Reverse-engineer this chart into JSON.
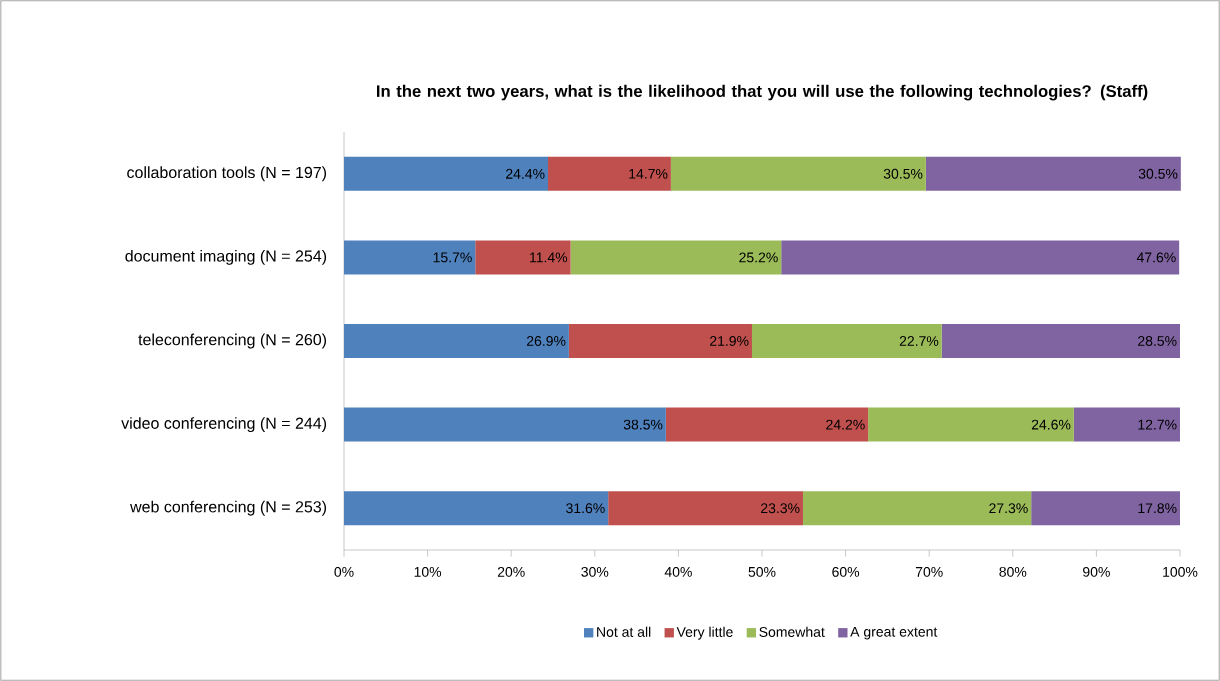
{
  "chart_data": {
    "type": "bar",
    "orientation": "horizontal",
    "stacked": true,
    "title": "In the next two years, what is the likelihood that you will use the following technologies?  (Staff)",
    "categories": [
      "collaboration tools (N = 197)",
      "document imaging (N = 254)",
      "teleconferencing (N = 260)",
      "video conferencing (N = 244)",
      "web conferencing (N = 253)"
    ],
    "series": [
      {
        "name": "Not at all",
        "color": "#4f81bd",
        "values": [
          24.4,
          15.7,
          26.9,
          38.5,
          31.6
        ],
        "value_labels": [
          "24.4%",
          "15.7%",
          "26.9%",
          "38.5%",
          "31.6%"
        ]
      },
      {
        "name": "Very little",
        "color": "#c0504d",
        "values": [
          14.7,
          11.4,
          21.9,
          24.2,
          23.3
        ],
        "value_labels": [
          "14.7%",
          "11.4%",
          "21.9%",
          "24.2%",
          "23.3%"
        ]
      },
      {
        "name": "Somewhat",
        "color": "#9bbb59",
        "values": [
          30.5,
          25.2,
          22.7,
          24.6,
          27.3
        ],
        "value_labels": [
          "30.5%",
          "25.2%",
          "22.7%",
          "24.6%",
          "27.3%"
        ]
      },
      {
        "name": "A great extent",
        "color": "#8064a2",
        "values": [
          30.5,
          47.6,
          28.5,
          12.7,
          17.8
        ],
        "value_labels": [
          "30.5%",
          "47.6%",
          "28.5%",
          "12.7%",
          "17.8%"
        ]
      }
    ],
    "xlim": [
      0,
      100
    ],
    "xticks": [
      {
        "value": 0,
        "label": "0%"
      },
      {
        "value": 10,
        "label": "10%"
      },
      {
        "value": 20,
        "label": "20%"
      },
      {
        "value": 30,
        "label": "30%"
      },
      {
        "value": 40,
        "label": "40%"
      },
      {
        "value": 50,
        "label": "50%"
      },
      {
        "value": 60,
        "label": "60%"
      },
      {
        "value": 70,
        "label": "70%"
      },
      {
        "value": 80,
        "label": "80%"
      },
      {
        "value": 90,
        "label": "90%"
      },
      {
        "value": 100,
        "label": "100%"
      }
    ],
    "legend": "bottom",
    "grid": false
  }
}
